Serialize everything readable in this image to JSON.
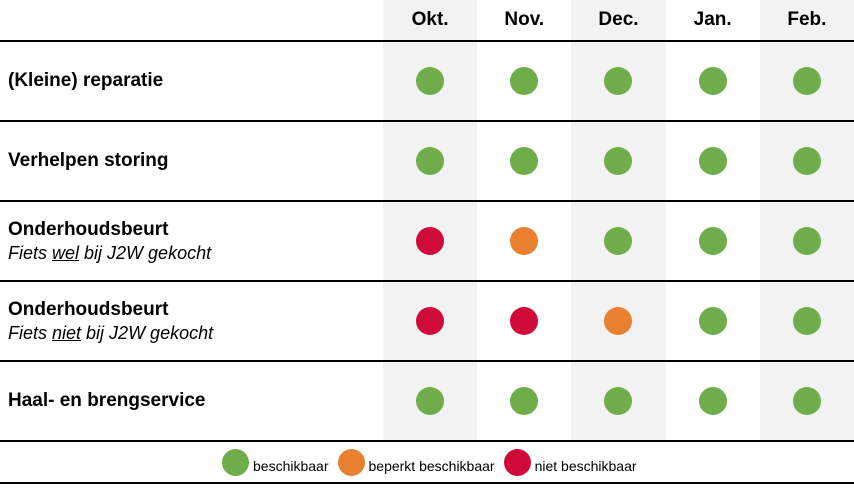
{
  "header": {
    "months": [
      "Okt.",
      "Nov.",
      "Dec.",
      "Jan.",
      "Feb."
    ]
  },
  "rows": [
    {
      "title": "(Kleine) reparatie",
      "subtitle": null,
      "statuses": [
        "available",
        "available",
        "available",
        "available",
        "available"
      ]
    },
    {
      "title": "Verhelpen storing",
      "subtitle": null,
      "statuses": [
        "available",
        "available",
        "available",
        "available",
        "available"
      ]
    },
    {
      "title": "Onderhoudsbeurt",
      "subtitle": {
        "prefix": "Fiets ",
        "underline": "wel",
        "suffix": " bij J2W gekocht"
      },
      "statuses": [
        "unavailable",
        "limited",
        "available",
        "available",
        "available"
      ]
    },
    {
      "title": "Onderhoudsbeurt",
      "subtitle": {
        "prefix": "Fiets ",
        "underline": "niet",
        "suffix": " bij J2W gekocht"
      },
      "statuses": [
        "unavailable",
        "unavailable",
        "limited",
        "available",
        "available"
      ]
    },
    {
      "title": "Haal- en brengservice",
      "subtitle": null,
      "statuses": [
        "available",
        "available",
        "available",
        "available",
        "available"
      ]
    }
  ],
  "legend": {
    "items": [
      {
        "status": "available",
        "label": "beschikbaar"
      },
      {
        "status": "limited",
        "label": "beperkt beschikbaar"
      },
      {
        "status": "unavailable",
        "label": "niet beschikbaar"
      }
    ]
  },
  "status_colors": {
    "available": "#6FAD4B",
    "limited": "#E8802F",
    "unavailable": "#D00A38"
  },
  "style": {
    "column_shade": "#F2F2F2",
    "line_color": "#000000"
  },
  "chart_data": {
    "type": "table",
    "title": "",
    "columns": [
      "Okt.",
      "Nov.",
      "Dec.",
      "Jan.",
      "Feb."
    ],
    "rows": [
      {
        "label": "(Kleine) reparatie",
        "values": [
          "beschikbaar",
          "beschikbaar",
          "beschikbaar",
          "beschikbaar",
          "beschikbaar"
        ]
      },
      {
        "label": "Verhelpen storing",
        "values": [
          "beschikbaar",
          "beschikbaar",
          "beschikbaar",
          "beschikbaar",
          "beschikbaar"
        ]
      },
      {
        "label": "Onderhoudsbeurt — Fiets wel bij J2W gekocht",
        "values": [
          "niet beschikbaar",
          "beperkt beschikbaar",
          "beschikbaar",
          "beschikbaar",
          "beschikbaar"
        ]
      },
      {
        "label": "Onderhoudsbeurt — Fiets niet bij J2W gekocht",
        "values": [
          "niet beschikbaar",
          "niet beschikbaar",
          "beperkt beschikbaar",
          "beschikbaar",
          "beschikbaar"
        ]
      },
      {
        "label": "Haal- en brengservice",
        "values": [
          "beschikbaar",
          "beschikbaar",
          "beschikbaar",
          "beschikbaar",
          "beschikbaar"
        ]
      }
    ],
    "legend_position": "bottom",
    "legend": [
      "beschikbaar",
      "beperkt beschikbaar",
      "niet beschikbaar"
    ]
  }
}
